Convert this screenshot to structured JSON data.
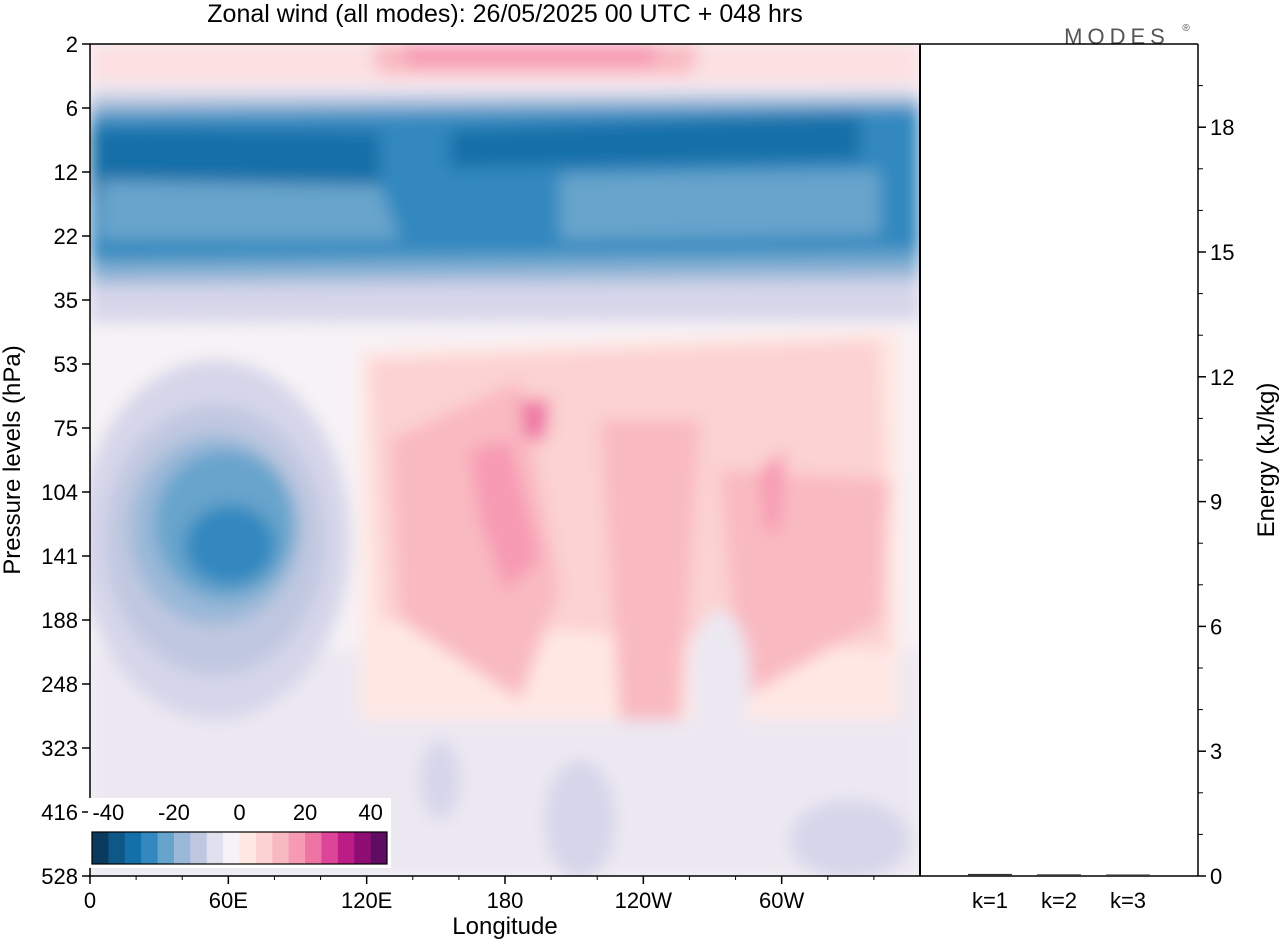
{
  "chart_data": [
    {
      "type": "heatmap",
      "title": "Zonal wind (all modes):  26/05/2025  00 UTC  + 048 hrs",
      "xlabel": "Longitude",
      "ylabel": "Pressure levels (hPa)",
      "x_ticks": [
        "0",
        "60E",
        "120E",
        "180",
        "120W",
        "60W"
      ],
      "x_tick_values": [
        0,
        60,
        120,
        180,
        240,
        300
      ],
      "xlim": [
        0,
        360
      ],
      "y_ticks": [
        "2",
        "6",
        "12",
        "22",
        "35",
        "53",
        "75",
        "104",
        "141",
        "188",
        "248",
        "323",
        "416",
        "528"
      ],
      "y_inverted": true,
      "colorbar": {
        "tick_labels": [
          "-40",
          "-20",
          "0",
          "20",
          "40"
        ],
        "tick_values": [
          -40,
          -20,
          0,
          20,
          40
        ],
        "range": [
          -45,
          45
        ],
        "step": 5,
        "colors": [
          "#0a3a5e",
          "#0f5787",
          "#1470a8",
          "#3388bf",
          "#67a4cc",
          "#9ab8d8",
          "#c0c8e0",
          "#e0e0ee",
          "#f7f2f6",
          "#ffe8e4",
          "#fcd2d2",
          "#f9b9c1",
          "#f79ab3",
          "#ee74a4",
          "#dc4598",
          "#bc1c86",
          "#8f0e74",
          "#5e0d62"
        ]
      },
      "bands": [
        {
          "level": "2",
          "character": "weak westerly, up to about 20"
        },
        {
          "level": "6-22",
          "character": "strong easterly, -20 to -40"
        },
        {
          "level": "35",
          "character": "weak easterly, near 0"
        },
        {
          "level": "53-248",
          "character": "westerly 5-20 from 120E to 60W; easterly up to -25 near 60E"
        },
        {
          "level": "323-528",
          "character": "weak, -10 to 5"
        }
      ]
    },
    {
      "type": "bar",
      "categories": [
        "k=1",
        "k=2",
        "k=3"
      ],
      "values": [
        0.05,
        0.04,
        0.03
      ],
      "ylabel": "Energy (kJ/kg)",
      "y_ticks": [
        "0",
        "3",
        "6",
        "9",
        "12",
        "15",
        "18"
      ],
      "ylim": [
        0,
        20
      ]
    }
  ],
  "brand": "MODES"
}
